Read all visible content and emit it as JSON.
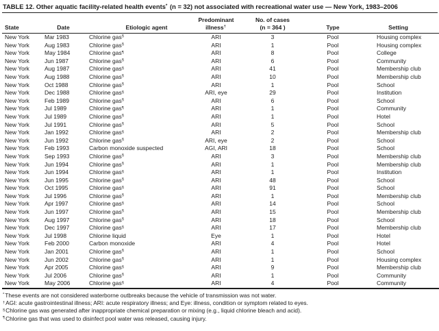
{
  "page": {
    "title": {
      "pre": "TABLE 12. Other aquatic facility-related health events",
      "marker": "*",
      "post": " (n = 32) not associated with recreational water use — New York, 1983–2006"
    }
  },
  "table": {
    "columns": [
      {
        "id": "state",
        "lines": [
          "State"
        ],
        "sup": ""
      },
      {
        "id": "date",
        "lines": [
          "Date"
        ],
        "sup": ""
      },
      {
        "id": "etiologic-agent",
        "lines": [
          "Etiologic agent"
        ],
        "sup": ""
      },
      {
        "id": "predominant-illness",
        "lines": [
          "Predominant",
          "illness"
        ],
        "sup": "†"
      },
      {
        "id": "no-of-cases",
        "lines": [
          "No. of cases",
          "(n = 364 )"
        ],
        "sup": ""
      },
      {
        "id": "type",
        "lines": [
          "Type"
        ],
        "sup": ""
      },
      {
        "id": "setting",
        "lines": [
          "Setting"
        ],
        "sup": ""
      }
    ],
    "rows": [
      [
        "New York",
        "Mar 1983",
        "Chlorine gas",
        "§",
        "ARI",
        "3",
        "Pool",
        "Housing complex"
      ],
      [
        "New York",
        "Aug 1983",
        "Chlorine gas",
        "§",
        "ARI",
        "1",
        "Pool",
        "Housing complex"
      ],
      [
        "New York",
        "May 1984",
        "Chlorine gas",
        "¶",
        "ARI",
        "8",
        "Pool",
        "College"
      ],
      [
        "New York",
        "Jun 1987",
        "Chlorine gas",
        "§",
        "ARI",
        "6",
        "Pool",
        "Community"
      ],
      [
        "New York",
        "Aug 1987",
        "Chlorine gas",
        "§",
        "ARI",
        "41",
        "Pool",
        "Membership club"
      ],
      [
        "New York",
        "Aug 1988",
        "Chlorine gas",
        "§",
        "ARI",
        "10",
        "Pool",
        "Membership club"
      ],
      [
        "New York",
        "Oct 1988",
        "Chlorine gas",
        "§",
        "ARI",
        "1",
        "Pool",
        "School"
      ],
      [
        "New York",
        "Dec 1988",
        "Chlorine gas",
        "§",
        "ARI, eye",
        "29",
        "Pool",
        "Institution"
      ],
      [
        "New York",
        "Feb 1989",
        "Chlorine gas",
        "§",
        "ARI",
        "6",
        "Pool",
        "School"
      ],
      [
        "New York",
        "Jul 1989",
        "Chlorine gas",
        "¶",
        "ARI",
        "1",
        "Pool",
        "Community"
      ],
      [
        "New York",
        "Jul 1989",
        "Chlorine gas",
        "§",
        "ARI",
        "1",
        "Pool",
        "Hotel"
      ],
      [
        "New York",
        "Jul 1991",
        "Chlorine gas",
        "§",
        "ARI",
        "5",
        "Pool",
        "School"
      ],
      [
        "New York",
        "Jan 1992",
        "Chlorine gas",
        "§",
        "ARI",
        "2",
        "Pool",
        "Membership club"
      ],
      [
        "New York",
        "Jun 1992",
        "Chlorine gas",
        "§",
        "ARI, eye",
        "2",
        "Pool",
        "School"
      ],
      [
        "New York",
        "Feb 1993",
        "Carbon monoxide suspected",
        "",
        "AGI, ARI",
        "18",
        "Pool",
        "School"
      ],
      [
        "New York",
        "Sep 1993",
        "Chlorine gas",
        "§",
        "ARI",
        "3",
        "Pool",
        "Membership club"
      ],
      [
        "New York",
        "Jun 1994",
        "Chlorine gas",
        "§",
        "ARI",
        "1",
        "Pool",
        "Membership club"
      ],
      [
        "New York",
        "Jun 1994",
        "Chlorine gas",
        "§",
        "ARI",
        "1",
        "Pool",
        "Institution"
      ],
      [
        "New York",
        "Jun 1995",
        "Chlorine gas",
        "§",
        "ARI",
        "48",
        "Pool",
        "School"
      ],
      [
        "New York",
        "Oct 1995",
        "Chlorine gas",
        "§",
        "ARI",
        "91",
        "Pool",
        "School"
      ],
      [
        "New York",
        "Jul 1996",
        "Chlorine gas",
        "§",
        "ARI",
        "1",
        "Pool",
        "Membership club"
      ],
      [
        "New York",
        "Apr 1997",
        "Chlorine gas",
        "§",
        "ARI",
        "14",
        "Pool",
        "School"
      ],
      [
        "New York",
        "Jun 1997",
        "Chlorine gas",
        "§",
        "ARI",
        "15",
        "Pool",
        "Membership club"
      ],
      [
        "New York",
        "Aug 1997",
        "Chlorine gas",
        "§",
        "ARI",
        "18",
        "Pool",
        "School"
      ],
      [
        "New York",
        "Dec 1997",
        "Chlorine gas",
        "§",
        "ARI",
        "17",
        "Pool",
        "Membership club"
      ],
      [
        "New York",
        "Jul 1998",
        "Chlorine liquid",
        "",
        "Eye",
        "1",
        "Pool",
        "Hotel"
      ],
      [
        "New York",
        "Feb 2000",
        "Carbon monoxide",
        "",
        "ARI",
        "4",
        "Pool",
        "Hotel"
      ],
      [
        "New York",
        "Jan 2001",
        "Chlorine gas",
        "§",
        "ARI",
        "1",
        "Pool",
        "School"
      ],
      [
        "New York",
        "Jun 2002",
        "Chlorine gas",
        "§",
        "ARI",
        "1",
        "Pool",
        "Housing complex"
      ],
      [
        "New York",
        "Apr 2005",
        "Chlorine gas",
        "§",
        "ARI",
        "9",
        "Pool",
        "Membership club"
      ],
      [
        "New York",
        "Jul 2006",
        "Chlorine gas",
        "§",
        "ARI",
        "1",
        "Pool",
        "Community"
      ],
      [
        "New York",
        "May 2006",
        "Chlorine gas",
        "§",
        "ARI",
        "4",
        "Pool",
        "Community"
      ]
    ]
  },
  "footnotes": [
    {
      "marker": "*",
      "text": "These events are not considered waterborne outbreaks because the vehicle of transmission was not water."
    },
    {
      "marker": "†",
      "text": "AGI: acute gastrointestinal illness; ARI: acute respiratory illness; and Eye: illness, condition or symptom related to eyes."
    },
    {
      "marker": "§",
      "text": "Chlorine gas was generated after inappropriate chemical preparation or mixing (e.g., liquid chlorine bleach and acid)."
    },
    {
      "marker": "¶",
      "text": "Chlorine gas that was used to disinfect pool water was released, causing injury."
    }
  ]
}
